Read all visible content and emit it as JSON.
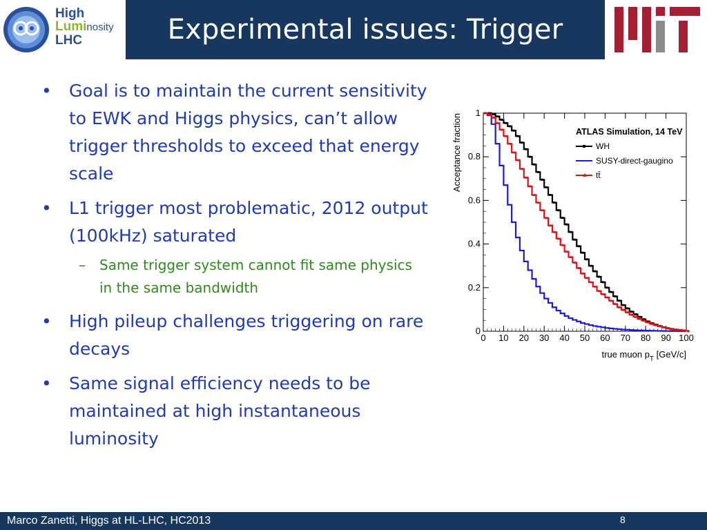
{
  "header": {
    "title": "Experimental issues: Trigger",
    "logo_left": {
      "line1": "High",
      "line2_a": "Lumi",
      "line2_b": "nosity",
      "line3": "LHC"
    },
    "logo_right": {
      "text": "MIT"
    }
  },
  "bullets": [
    {
      "text": "Goal is to maintain the current sensitivity to EWK and Higgs physics, can’t allow trigger thresholds to exceed that energy scale"
    },
    {
      "text": "L1 trigger most problematic, 2012 output (100kHz) saturated",
      "sub": "Same trigger system cannot fit same physics in the same bandwidth"
    },
    {
      "text": "High pileup challenges triggering on rare decays"
    },
    {
      "text": "Same signal efficiency needs to be maintained  at high instantaneous luminosity"
    }
  ],
  "bullet_symbol": "•",
  "sub_symbol": "–",
  "footer": {
    "left": "Marco Zanetti, Higgs at HL-LHC, HC2013",
    "page": "8"
  },
  "colors": {
    "title_bg": "#17375e",
    "bullet_text": "#1f3bb3",
    "sub_text": "#2e8b1c",
    "mit_red": "#a31f34",
    "mit_gray": "#8a8b8c"
  },
  "chart_data": {
    "type": "line",
    "title": "ATLAS Simulation, 14 TeV",
    "xlabel": "true muon p",
    "xlabel_sub": "T",
    "xlabel_unit": " [GeV/c]",
    "ylabel": "Acceptance fraction",
    "xlim": [
      0,
      100
    ],
    "ylim": [
      0,
      1
    ],
    "xticks": [
      0,
      10,
      20,
      30,
      40,
      50,
      60,
      70,
      80,
      90,
      100
    ],
    "yticks": [
      0,
      0.2,
      0.4,
      0.6,
      0.8,
      1
    ],
    "ytick_labels": [
      "0",
      "0.2",
      "0.4",
      "0.6",
      "0.8",
      "1"
    ],
    "grid": false,
    "legend_position": "top-right",
    "x": [
      0,
      2,
      4,
      6,
      8,
      10,
      12,
      14,
      16,
      18,
      20,
      22,
      24,
      26,
      28,
      30,
      32,
      34,
      36,
      38,
      40,
      42,
      44,
      46,
      48,
      50,
      52,
      54,
      56,
      58,
      60,
      62,
      64,
      66,
      68,
      70,
      72,
      74,
      76,
      78,
      80,
      82,
      84,
      86,
      88,
      90,
      92,
      94,
      96,
      98,
      100
    ],
    "series": [
      {
        "name": "WH",
        "color": "#000000",
        "marker": "square",
        "values": [
          1.0,
          1.0,
          0.995,
          0.985,
          0.97,
          0.955,
          0.94,
          0.92,
          0.895,
          0.865,
          0.835,
          0.8,
          0.765,
          0.73,
          0.695,
          0.66,
          0.625,
          0.59,
          0.555,
          0.52,
          0.49,
          0.455,
          0.42,
          0.39,
          0.36,
          0.33,
          0.3,
          0.275,
          0.25,
          0.225,
          0.2,
          0.18,
          0.16,
          0.14,
          0.12,
          0.105,
          0.09,
          0.078,
          0.066,
          0.055,
          0.045,
          0.037,
          0.03,
          0.024,
          0.018,
          0.014,
          0.01,
          0.007,
          0.005,
          0.003,
          0.0
        ]
      },
      {
        "name": "SUSY-direct-gauginо",
        "color": "#1a1ad6",
        "marker": "line",
        "values": [
          1.0,
          0.99,
          0.95,
          0.86,
          0.76,
          0.67,
          0.58,
          0.5,
          0.43,
          0.37,
          0.32,
          0.28,
          0.24,
          0.205,
          0.175,
          0.15,
          0.13,
          0.11,
          0.095,
          0.082,
          0.07,
          0.06,
          0.052,
          0.045,
          0.038,
          0.033,
          0.028,
          0.024,
          0.021,
          0.018,
          0.015,
          0.013,
          0.011,
          0.0095,
          0.008,
          0.007,
          0.006,
          0.005,
          0.0042,
          0.0035,
          0.003,
          0.0025,
          0.002,
          0.0016,
          0.0013,
          0.001,
          0.0008,
          0.0006,
          0.0004,
          0.0002,
          0.0
        ]
      },
      {
        "name": "tt̄",
        "color": "#e01010",
        "marker": "triangle",
        "values": [
          1.0,
          0.995,
          0.98,
          0.955,
          0.925,
          0.895,
          0.86,
          0.82,
          0.785,
          0.745,
          0.705,
          0.665,
          0.625,
          0.59,
          0.555,
          0.52,
          0.485,
          0.455,
          0.425,
          0.395,
          0.365,
          0.34,
          0.315,
          0.29,
          0.265,
          0.245,
          0.225,
          0.205,
          0.185,
          0.17,
          0.155,
          0.14,
          0.125,
          0.11,
          0.098,
          0.087,
          0.076,
          0.066,
          0.057,
          0.049,
          0.041,
          0.034,
          0.028,
          0.023,
          0.018,
          0.014,
          0.01,
          0.007,
          0.005,
          0.003,
          0.0
        ]
      }
    ]
  }
}
